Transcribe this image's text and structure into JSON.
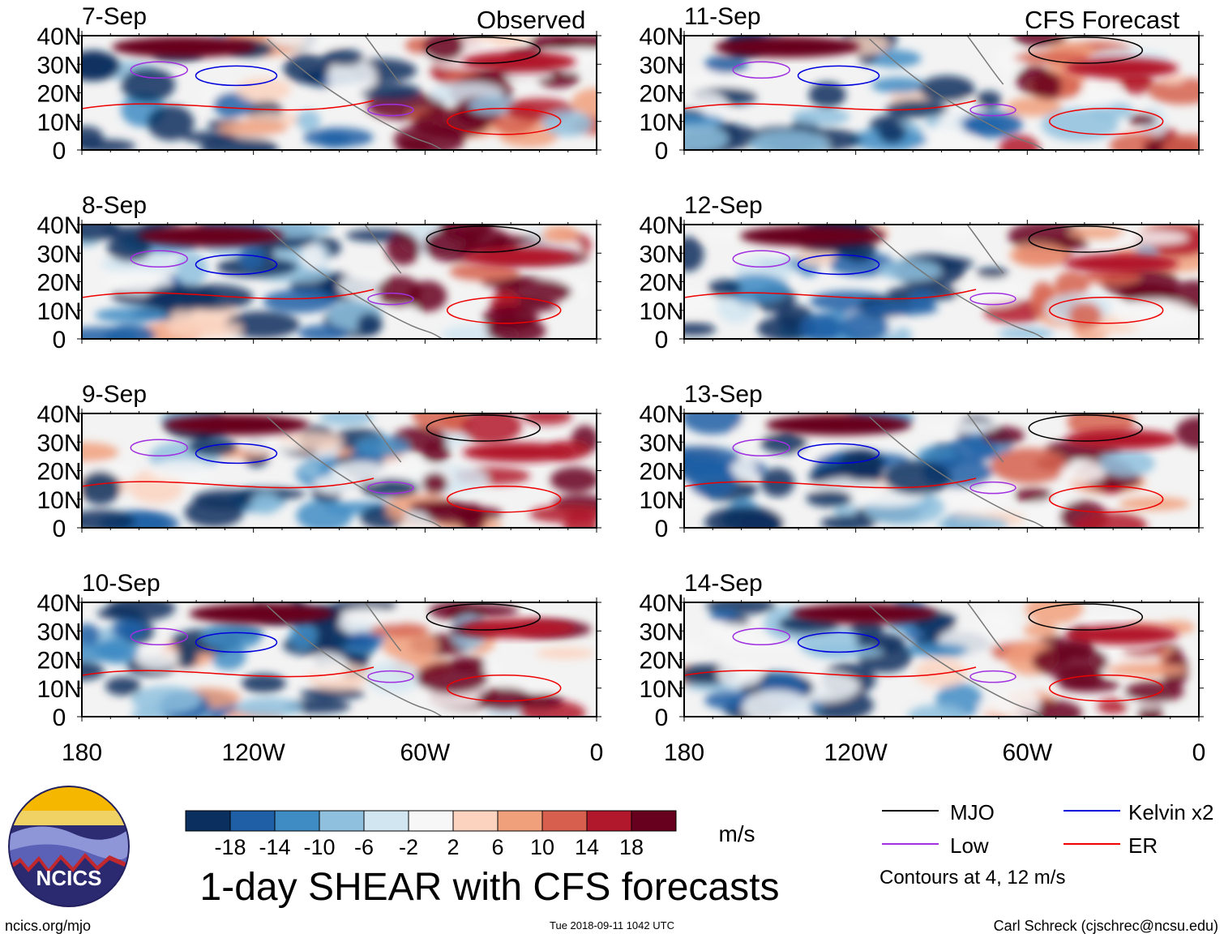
{
  "chart_data": {
    "type": "heatmap",
    "title": "1-day SHEAR with CFS forecasts",
    "observed_label": "Observed",
    "forecast_label": "CFS Forecast",
    "units": "m/s",
    "panels": [
      {
        "date": "7-Sep",
        "group": "observed"
      },
      {
        "date": "8-Sep",
        "group": "observed"
      },
      {
        "date": "9-Sep",
        "group": "observed"
      },
      {
        "date": "10-Sep",
        "group": "observed"
      },
      {
        "date": "11-Sep",
        "group": "forecast"
      },
      {
        "date": "12-Sep",
        "group": "forecast"
      },
      {
        "date": "13-Sep",
        "group": "forecast"
      },
      {
        "date": "14-Sep",
        "group": "forecast"
      }
    ],
    "lat_ticks": [
      "40N",
      "30N",
      "20N",
      "10N",
      "0"
    ],
    "lat_values": [
      40,
      30,
      20,
      10,
      0
    ],
    "lon_ticks": [
      "180",
      "120W",
      "60W",
      "0"
    ],
    "lon_values": [
      -180,
      -120,
      -60,
      0
    ],
    "xlim": [
      -180,
      0
    ],
    "ylim": [
      0,
      40
    ],
    "colorbar": {
      "levels": [
        "-18",
        "-14",
        "-10",
        "-6",
        "-2",
        "2",
        "6",
        "10",
        "14",
        "18"
      ],
      "colors": [
        "#0b2f5e",
        "#1f5fa6",
        "#3f8cc4",
        "#8fc1de",
        "#d2e6f1",
        "#f7f7f7",
        "#fbd3bf",
        "#f1a07c",
        "#d6604d",
        "#b2182b",
        "#67001f"
      ]
    },
    "legend": [
      {
        "label": "MJO",
        "color": "#000000"
      },
      {
        "label": "Kelvin x2",
        "color": "#0000dd"
      },
      {
        "label": "Low",
        "color": "#a030e0"
      },
      {
        "label": "ER",
        "color": "#ee0000"
      }
    ],
    "contour_note": "Contours at 4, 12 m/s"
  },
  "footer": {
    "site": "ncics.org/mjo",
    "timestamp": "Tue 2018-09-11 1042 UTC",
    "author": "Carl Schreck (cjschrec@ncsu.edu)"
  },
  "logo": {
    "text": "NCICS"
  }
}
